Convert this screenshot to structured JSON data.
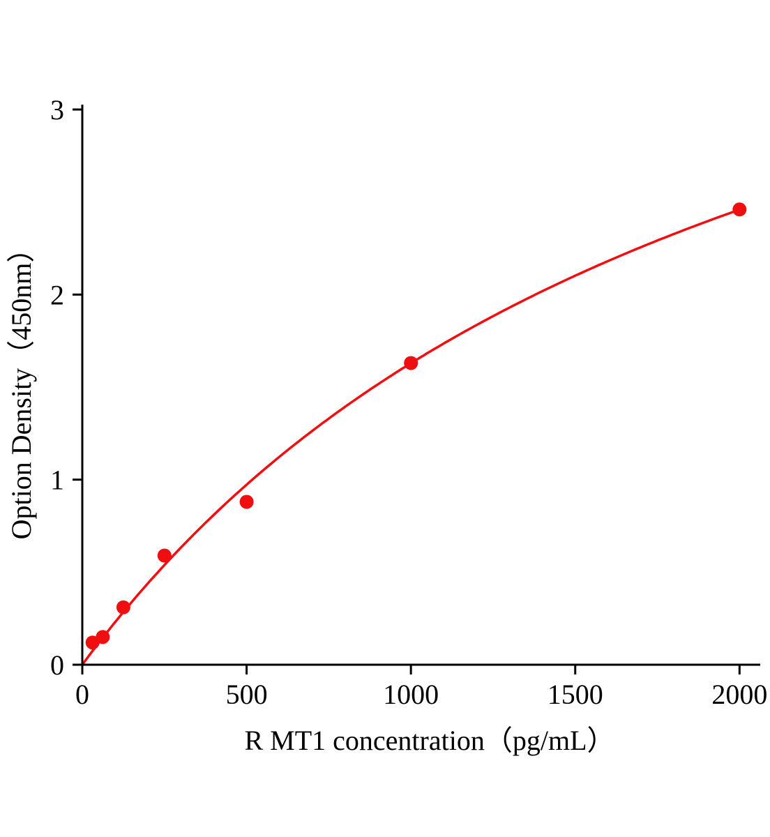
{
  "chart_data": {
    "type": "scatter",
    "title": "",
    "xlabel": "R MT1  concentration（pg/mL）",
    "ylabel": "Option Density（450nm）",
    "xlim": [
      0,
      2063
    ],
    "ylim": [
      0,
      3
    ],
    "x_ticks": [
      0,
      500,
      1000,
      1500,
      2000
    ],
    "y_ticks": [
      0,
      1,
      2,
      3
    ],
    "grid": false,
    "legend": false,
    "axis_color": "#000000",
    "point_color": "#f10e10",
    "line_color": "#f10e10",
    "points": [
      {
        "x": 31.25,
        "y": 0.12
      },
      {
        "x": 62.5,
        "y": 0.15
      },
      {
        "x": 125,
        "y": 0.31
      },
      {
        "x": 250,
        "y": 0.59
      },
      {
        "x": 500,
        "y": 0.88
      },
      {
        "x": 1000,
        "y": 1.63
      },
      {
        "x": 2000,
        "y": 2.46
      }
    ],
    "fit_curve": {
      "type": "saturation",
      "formula": "y = a*x/(b+x)",
      "a": 5.01,
      "b": 2075,
      "x_start": 0,
      "x_end": 2000
    }
  }
}
